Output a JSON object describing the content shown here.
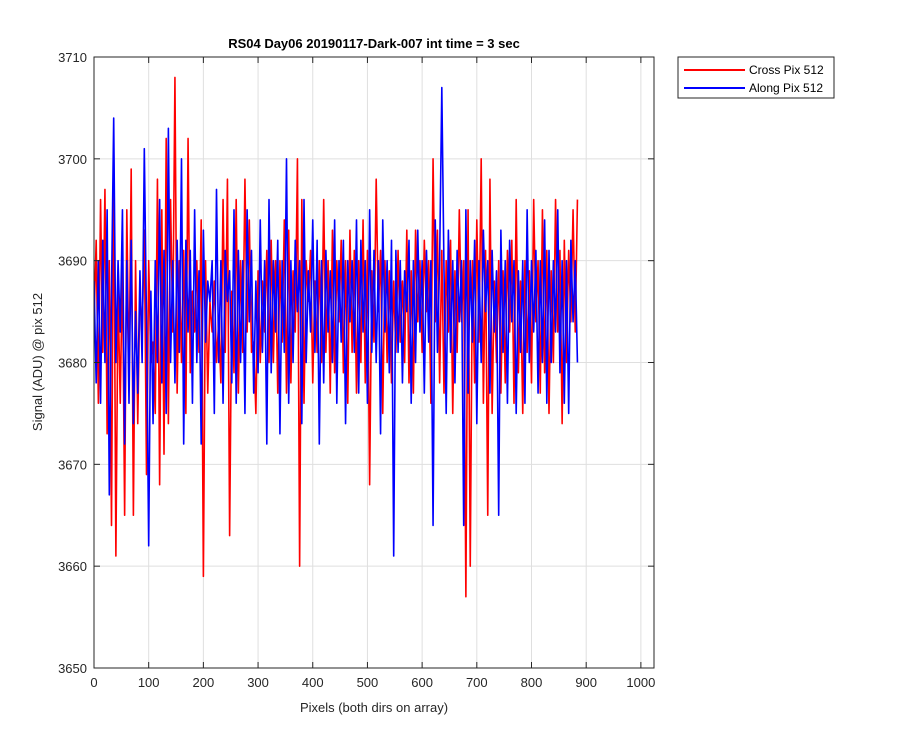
{
  "chart_data": {
    "type": "line",
    "title": "RS04 Day06 20190117-Dark-007 int time = 3 sec",
    "xlabel": "Pixels (both dirs on array)",
    "ylabel": "Signal (ADU) @ pix 512",
    "xlim": [
      0,
      1024
    ],
    "ylim": [
      3650,
      3710
    ],
    "x_ticks": [
      "0",
      "100",
      "200",
      "300",
      "400",
      "500",
      "600",
      "700",
      "800",
      "900",
      "1000"
    ],
    "y_ticks": [
      "3650",
      "3660",
      "3670",
      "3680",
      "3690",
      "3700",
      "3710"
    ],
    "grid": true,
    "legend_position": "outside-top-right",
    "x_start": 0,
    "x_step": 4,
    "series": [
      {
        "name": "Cross Pix 512",
        "color": "#ff0000",
        "values": [
          3684,
          3692,
          3676,
          3696,
          3681,
          3697,
          3673,
          3690,
          3664,
          3701,
          3661,
          3687,
          3676,
          3690,
          3665,
          3695,
          3678,
          3699,
          3665,
          3690,
          3674,
          3687,
          3683,
          3693,
          3669,
          3690,
          3680,
          3682,
          3675,
          3698,
          3668,
          3695,
          3671,
          3702,
          3674,
          3696,
          3683,
          3708,
          3677,
          3690,
          3680,
          3691,
          3675,
          3702,
          3679,
          3687,
          3683,
          3690,
          3681,
          3694,
          3659,
          3690,
          3677,
          3686,
          3683,
          3688,
          3680,
          3684,
          3678,
          3696,
          3681,
          3698,
          3663,
          3687,
          3679,
          3696,
          3677,
          3690,
          3681,
          3698,
          3683,
          3694,
          3681,
          3682,
          3675,
          3689,
          3680,
          3688,
          3683,
          3691,
          3680,
          3692,
          3680,
          3690,
          3677,
          3690,
          3682,
          3694,
          3677,
          3693,
          3678,
          3689,
          3683,
          3700,
          3660,
          3696,
          3676,
          3690,
          3686,
          3691,
          3678,
          3688,
          3681,
          3690,
          3680,
          3696,
          3681,
          3690,
          3677,
          3693,
          3679,
          3690,
          3684,
          3692,
          3679,
          3690,
          3676,
          3693,
          3681,
          3691,
          3677,
          3690,
          3680,
          3694,
          3678,
          3691,
          3668,
          3689,
          3682,
          3698,
          3685,
          3691,
          3675,
          3690,
          3680,
          3689,
          3678,
          3688,
          3681,
          3691,
          3682,
          3688,
          3680,
          3693,
          3678,
          3689,
          3677,
          3693,
          3684,
          3690,
          3681,
          3692,
          3685,
          3690,
          3676,
          3700,
          3684,
          3693,
          3678,
          3691,
          3677,
          3690,
          3683,
          3692,
          3675,
          3689,
          3681,
          3695,
          3684,
          3690,
          3657,
          3695,
          3660,
          3690,
          3678,
          3694,
          3682,
          3700,
          3676,
          3691,
          3665,
          3698,
          3675,
          3688,
          3680,
          3690,
          3677,
          3689,
          3678,
          3691,
          3683,
          3692,
          3676,
          3696,
          3679,
          3688,
          3675,
          3690,
          3681,
          3689,
          3678,
          3696,
          3684,
          3690,
          3677,
          3695,
          3679,
          3691,
          3675,
          3689,
          3680,
          3696,
          3683,
          3691,
          3674,
          3692,
          3680,
          3691,
          3684,
          3695,
          3683,
          3696
        ]
      },
      {
        "name": "Along Pix 512",
        "color": "#0000ff",
        "values": [
          3688,
          3678,
          3690,
          3676,
          3692,
          3680,
          3695,
          3667,
          3687,
          3704,
          3680,
          3690,
          3683,
          3695,
          3672,
          3690,
          3676,
          3692,
          3674,
          3685,
          3677,
          3689,
          3680,
          3701,
          3684,
          3662,
          3687,
          3674,
          3690,
          3680,
          3696,
          3678,
          3691,
          3675,
          3703,
          3680,
          3690,
          3678,
          3692,
          3681,
          3700,
          3672,
          3692,
          3683,
          3691,
          3676,
          3695,
          3680,
          3689,
          3672,
          3693,
          3682,
          3688,
          3686,
          3690,
          3675,
          3697,
          3680,
          3690,
          3676,
          3691,
          3686,
          3689,
          3678,
          3695,
          3676,
          3691,
          3680,
          3690,
          3675,
          3695,
          3684,
          3691,
          3677,
          3688,
          3679,
          3694,
          3681,
          3690,
          3672,
          3696,
          3679,
          3690,
          3683,
          3692,
          3673,
          3690,
          3681,
          3700,
          3676,
          3690,
          3680,
          3692,
          3685,
          3690,
          3674,
          3696,
          3680,
          3689,
          3683,
          3694,
          3681,
          3692,
          3672,
          3690,
          3678,
          3691,
          3683,
          3689,
          3680,
          3694,
          3676,
          3690,
          3682,
          3692,
          3674,
          3690,
          3684,
          3690,
          3681,
          3694,
          3677,
          3692,
          3683,
          3690,
          3676,
          3695,
          3681,
          3691,
          3680,
          3690,
          3673,
          3694,
          3683,
          3690,
          3679,
          3692,
          3661,
          3691,
          3681,
          3690,
          3678,
          3689,
          3685,
          3692,
          3676,
          3690,
          3680,
          3693,
          3683,
          3690,
          3677,
          3691,
          3682,
          3690,
          3664,
          3694,
          3681,
          3690,
          3707,
          3689,
          3675,
          3693,
          3681,
          3690,
          3678,
          3691,
          3684,
          3690,
          3664,
          3695,
          3677,
          3690,
          3682,
          3692,
          3674,
          3690,
          3680,
          3693,
          3685,
          3690,
          3677,
          3691,
          3683,
          3689,
          3665,
          3693,
          3681,
          3690,
          3676,
          3692,
          3684,
          3690,
          3675,
          3689,
          3681,
          3690,
          3676,
          3695,
          3680,
          3690,
          3683,
          3691,
          3677,
          3690,
          3680,
          3694,
          3676,
          3691,
          3680,
          3690,
          3683,
          3695,
          3679,
          3690,
          3676,
          3690,
          3675,
          3692,
          3684,
          3690,
          3680
        ]
      }
    ]
  }
}
